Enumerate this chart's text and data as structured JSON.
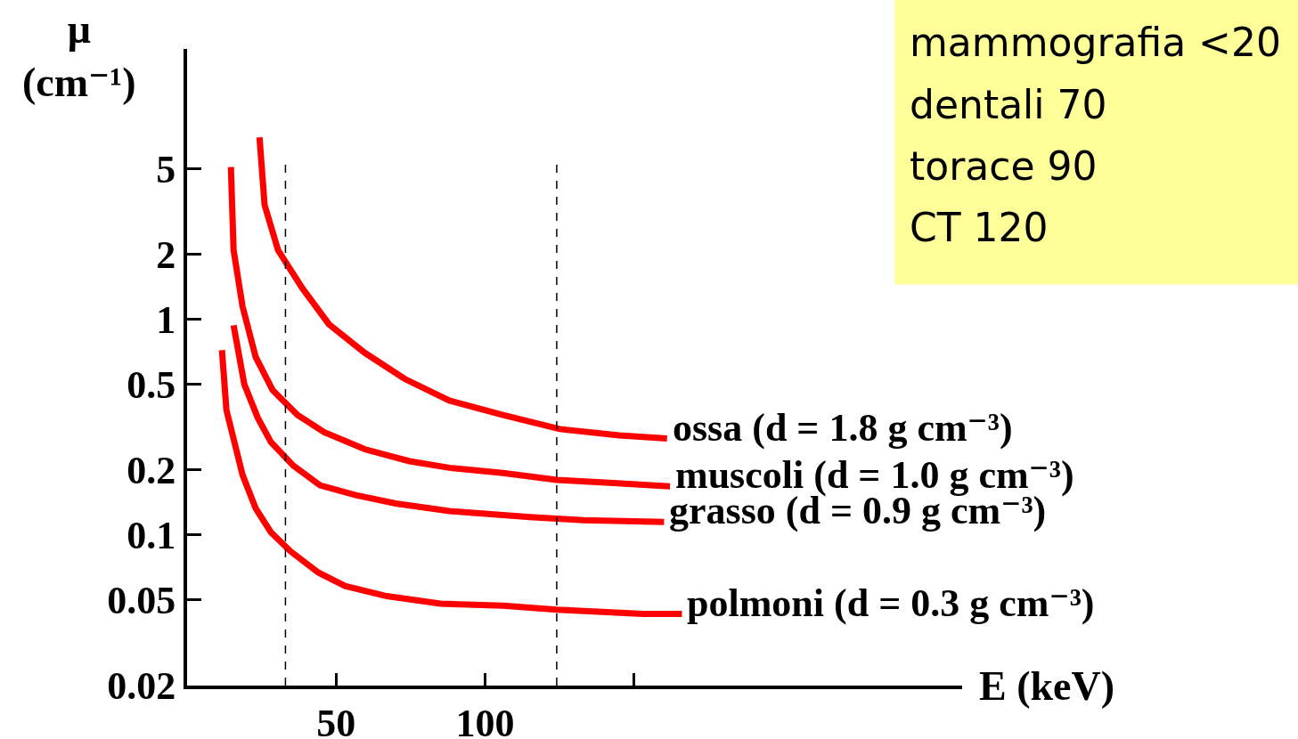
{
  "chart_data": {
    "type": "line",
    "xlabel": "E (keV)",
    "ylabel": "μ (cm⁻¹)",
    "log": "y",
    "xlim": [
      0,
      260
    ],
    "xticks": [
      50,
      100,
      {
        "value": 150,
        "label": null
      }
    ],
    "ylim": [
      0.02,
      18
    ],
    "yticks": [
      0.02,
      0.05,
      0.1,
      0.2,
      0.5,
      1,
      2,
      5
    ],
    "grid": false,
    "legend": false,
    "marker": "none",
    "line_style": "solid",
    "series": [
      {
        "name": "ossa (d = 1.8 g cm⁻³)",
        "color": "#ff0000",
        "x": [
          24.3,
          26,
          30.5,
          38.6,
          47.6,
          59.6,
          73,
          88,
          106,
          125,
          145,
          161
        ],
        "values": [
          7,
          3.4,
          2.1,
          1.4,
          0.95,
          0.7,
          0.53,
          0.42,
          0.36,
          0.31,
          0.29,
          0.28
        ]
      },
      {
        "name": "muscoli (d = 1.0 g cm⁻³)",
        "color": "#ff0000",
        "x": [
          14.7,
          15.6,
          18.6,
          23,
          28.7,
          37.1,
          46,
          59.6,
          74.6,
          88,
          106,
          124,
          143,
          162
        ],
        "values": [
          5.1,
          2.1,
          1.15,
          0.67,
          0.47,
          0.36,
          0.3,
          0.25,
          0.22,
          0.205,
          0.194,
          0.18,
          0.174,
          0.168
        ]
      },
      {
        "name": "grasso (d = 0.9 g cm⁻³)",
        "color": "#ff0000",
        "x": [
          15.6,
          19.2,
          23.7,
          28.1,
          35.6,
          44.6,
          56.6,
          70,
          88,
          115,
          133,
          160
        ],
        "values": [
          0.94,
          0.5,
          0.35,
          0.27,
          0.21,
          0.17,
          0.153,
          0.14,
          0.129,
          0.121,
          0.117,
          0.115
        ]
      },
      {
        "name": "polmoni (d = 0.3 g cm⁻³)",
        "color": "#ff0000",
        "x": [
          11.7,
          13.2,
          18.6,
          23,
          28.1,
          34.7,
          44,
          53,
          67,
          85,
          106,
          124,
          153,
          166
        ],
        "values": [
          0.72,
          0.38,
          0.19,
          0.133,
          0.103,
          0.084,
          0.067,
          0.058,
          0.052,
          0.048,
          0.047,
          0.045,
          0.043,
          0.043
        ]
      }
    ],
    "ref_lines": [
      {
        "axis": "x",
        "value": 33,
        "color": "#000000",
        "line_style": "dashed"
      },
      {
        "axis": "x",
        "value": 124,
        "color": "#000000",
        "line_style": "dashed"
      }
    ],
    "annotations": [
      "mammografia <20",
      "dentali 70",
      "torace 90",
      "CT 120"
    ]
  }
}
